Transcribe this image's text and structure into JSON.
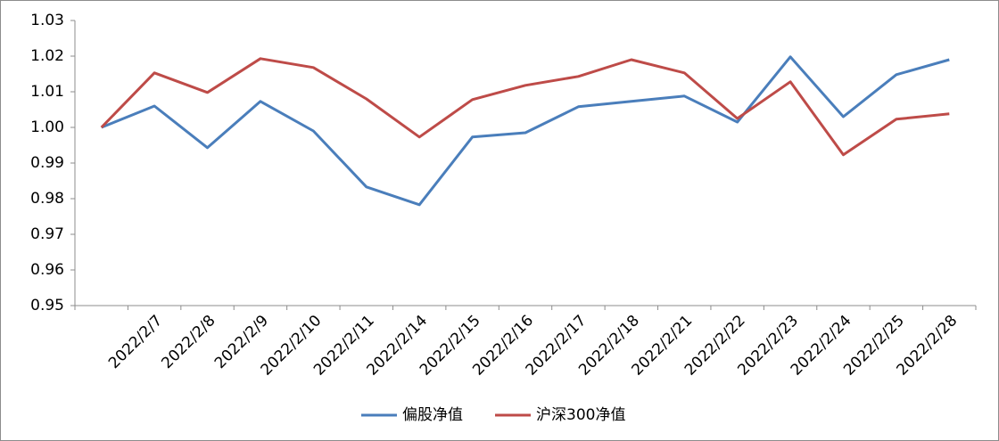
{
  "chart_data": {
    "type": "line",
    "categories": [
      null,
      "2022/2/7",
      "2022/2/8",
      "2022/2/9",
      "2022/2/10",
      "2022/2/11",
      "2022/2/14",
      "2022/2/15",
      "2022/2/16",
      "2022/2/17",
      "2022/2/18",
      "2022/2/21",
      "2022/2/22",
      "2022/2/23",
      "2022/2/24",
      "2022/2/25",
      "2022/2/28"
    ],
    "series": [
      {
        "name": "偏股净值",
        "color": "#4a7ebb",
        "values": [
          1.0,
          1.006,
          0.9943,
          1.0073,
          0.999,
          0.9833,
          0.9783,
          0.9973,
          0.9985,
          1.0058,
          1.0073,
          1.0088,
          1.0015,
          1.0198,
          1.003,
          1.0148,
          1.019
        ]
      },
      {
        "name": "沪深300净值",
        "color": "#be4b48",
        "values": [
          1.0,
          1.0153,
          1.0098,
          1.0193,
          1.0168,
          1.008,
          0.9973,
          1.0078,
          1.0118,
          1.0143,
          1.019,
          1.0153,
          1.0025,
          1.0128,
          0.9923,
          1.0023,
          1.0038
        ]
      }
    ],
    "ylim": [
      0.95,
      1.03
    ],
    "yticks": [
      0.95,
      0.96,
      0.97,
      0.98,
      0.99,
      {
        "value": 1,
        "label": "1.00"
      },
      1.01,
      1.02,
      1.03
    ],
    "grid": false,
    "legend": "bottom"
  }
}
